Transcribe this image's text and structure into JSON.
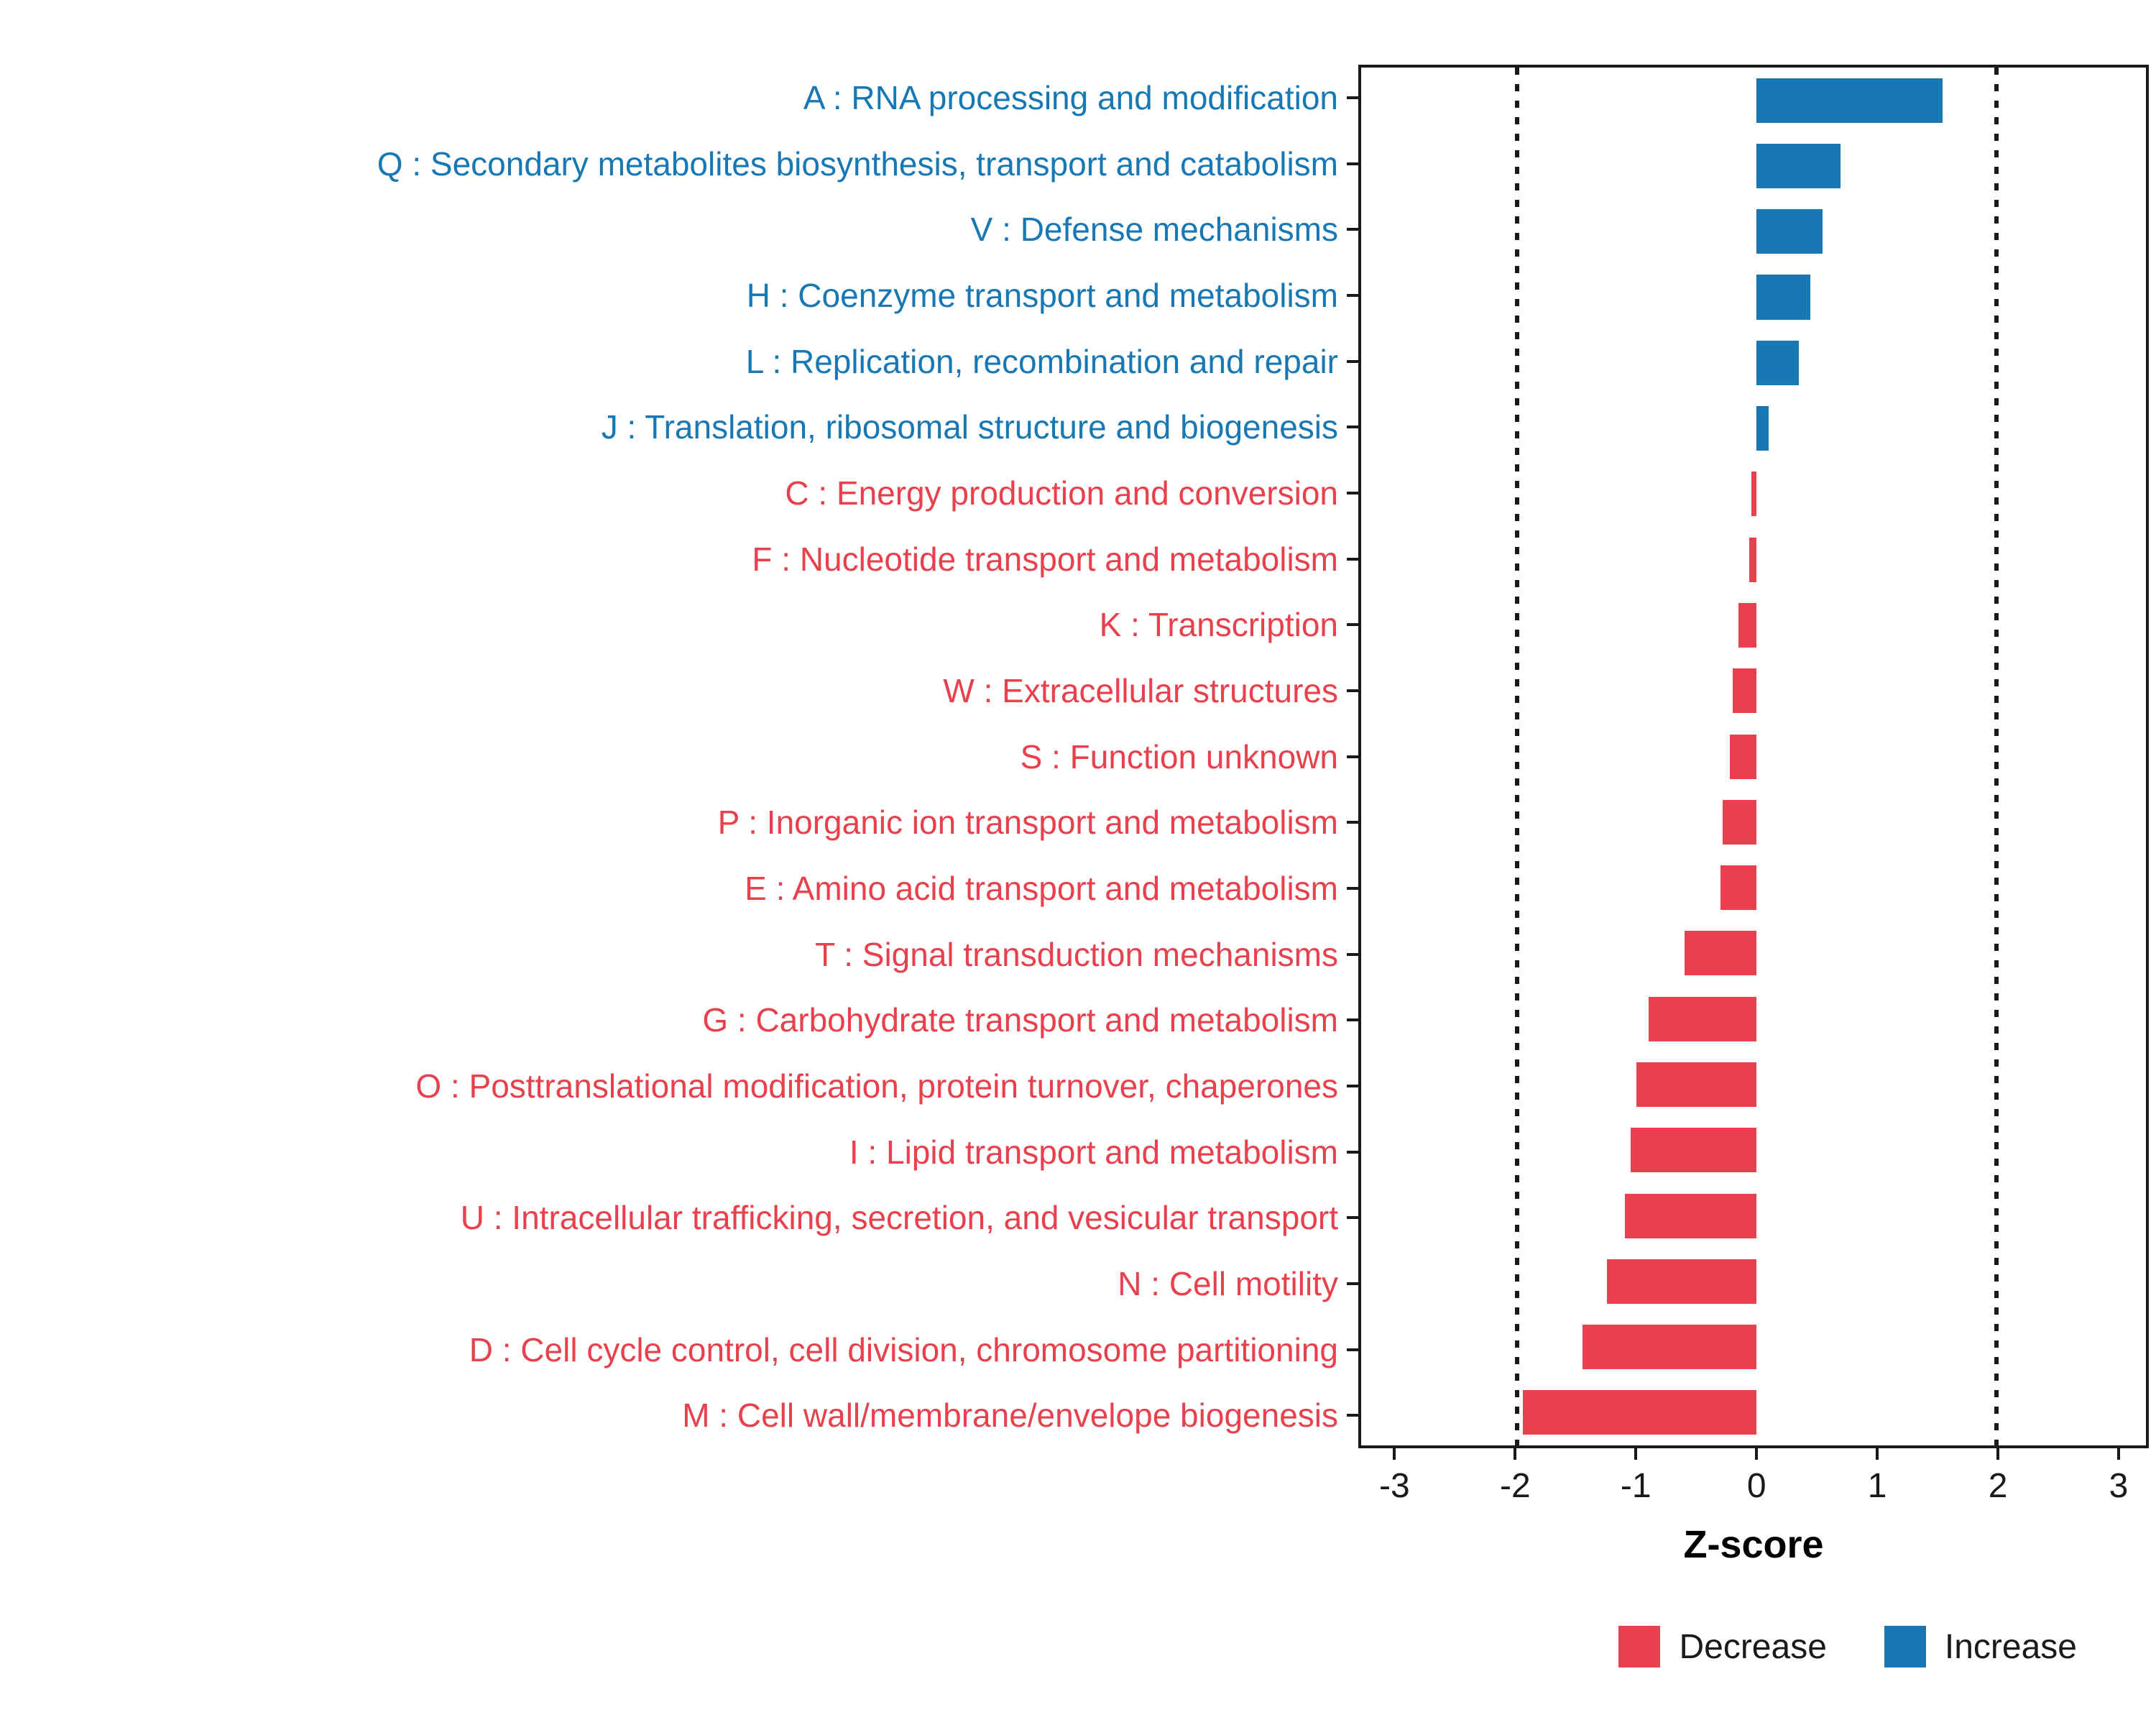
{
  "chart_data": {
    "type": "bar",
    "orientation": "horizontal",
    "title": "",
    "xlabel": "Z-score",
    "ylabel": "",
    "xlim": [
      -3.3,
      3.25
    ],
    "x_ticks": [
      -3,
      -2,
      -1,
      0,
      1,
      2,
      3
    ],
    "x_tick_labels": [
      "-3",
      "-2",
      "-1",
      "0",
      "1",
      "2",
      "3"
    ],
    "gridlines_dotted": [
      -2,
      2
    ],
    "grid": "dotted vertical reference lines at -2 and 2 only",
    "legend_position": "bottom-right",
    "colors": {
      "Increase": "#1878B4",
      "Decrease": "#E8404C"
    },
    "legend": [
      {
        "label": "Decrease",
        "group": "Decrease"
      },
      {
        "label": "Increase",
        "group": "Increase"
      }
    ],
    "categories": [
      {
        "label": "A : RNA processing and modification",
        "value": 1.55,
        "group": "Increase"
      },
      {
        "label": "Q : Secondary metabolites biosynthesis, transport and catabolism",
        "value": 0.7,
        "group": "Increase"
      },
      {
        "label": "V : Defense mechanisms",
        "value": 0.55,
        "group": "Increase"
      },
      {
        "label": "H : Coenzyme transport and metabolism",
        "value": 0.45,
        "group": "Increase"
      },
      {
        "label": "L : Replication, recombination and repair",
        "value": 0.35,
        "group": "Increase"
      },
      {
        "label": "J : Translation, ribosomal structure and biogenesis",
        "value": 0.1,
        "group": "Increase"
      },
      {
        "label": "C : Energy production and conversion",
        "value": -0.04,
        "group": "Decrease"
      },
      {
        "label": "F : Nucleotide transport and metabolism",
        "value": -0.06,
        "group": "Decrease"
      },
      {
        "label": "K : Transcription",
        "value": -0.15,
        "group": "Decrease"
      },
      {
        "label": "W : Extracellular structures",
        "value": -0.2,
        "group": "Decrease"
      },
      {
        "label": "S : Function unknown",
        "value": -0.22,
        "group": "Decrease"
      },
      {
        "label": "P : Inorganic ion transport and metabolism",
        "value": -0.28,
        "group": "Decrease"
      },
      {
        "label": "E : Amino acid transport and metabolism",
        "value": -0.3,
        "group": "Decrease"
      },
      {
        "label": "T : Signal transduction mechanisms",
        "value": -0.6,
        "group": "Decrease"
      },
      {
        "label": "G : Carbohydrate transport and metabolism",
        "value": -0.9,
        "group": "Decrease"
      },
      {
        "label": "O : Posttranslational modification, protein turnover, chaperones",
        "value": -1.0,
        "group": "Decrease"
      },
      {
        "label": "I : Lipid transport and metabolism",
        "value": -1.05,
        "group": "Decrease"
      },
      {
        "label": "U : Intracellular trafficking, secretion, and vesicular transport",
        "value": -1.1,
        "group": "Decrease"
      },
      {
        "label": "N : Cell motility",
        "value": -1.25,
        "group": "Decrease"
      },
      {
        "label": "D : Cell cycle control, cell division, chromosome partitioning",
        "value": -1.45,
        "group": "Decrease"
      },
      {
        "label": "M : Cell wall/membrane/envelope biogenesis",
        "value": -1.95,
        "group": "Decrease"
      }
    ]
  }
}
